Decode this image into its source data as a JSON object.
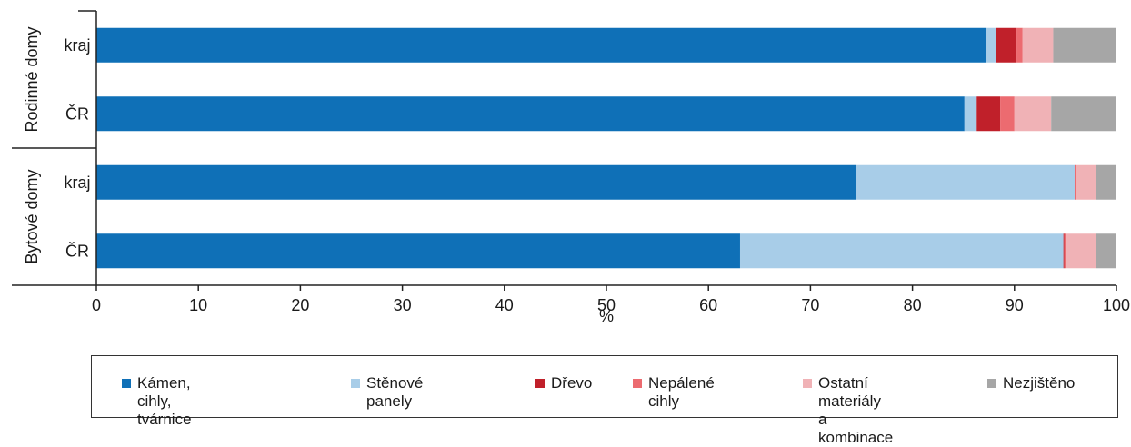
{
  "chart_data": {
    "type": "bar",
    "orientation": "horizontal",
    "stacked": true,
    "xlabel": "%",
    "xlim": [
      0,
      100
    ],
    "xticks": [
      0,
      10,
      20,
      30,
      40,
      50,
      60,
      70,
      80,
      90,
      100
    ],
    "groups": [
      {
        "label": "Rodinné domy",
        "categories": [
          "kraj",
          "ČR"
        ]
      },
      {
        "label": "Bytové domy",
        "categories": [
          "kraj",
          "ČR"
        ]
      }
    ],
    "series": [
      {
        "name": "Kámen, cihly, tvárnice",
        "color": "#0f70b7",
        "values": [
          87.2,
          85.1,
          74.5,
          63.1
        ]
      },
      {
        "name": "Stěnové panely",
        "color": "#a8cde8",
        "values": [
          1.0,
          1.2,
          21.4,
          31.7
        ]
      },
      {
        "name": "Dřevo",
        "color": "#c0202a",
        "values": [
          2.0,
          2.3,
          0.0,
          0.1
        ]
      },
      {
        "name": "Nepálené cihly",
        "color": "#ec6b70",
        "values": [
          0.6,
          1.4,
          0.1,
          0.2
        ]
      },
      {
        "name": "Ostatní materiály\na kombinace",
        "color": "#f0b2b6",
        "values": [
          3.0,
          3.6,
          2.0,
          2.9
        ]
      },
      {
        "name": "Nezjištěno",
        "color": "#a6a6a6",
        "values": [
          6.2,
          6.4,
          2.0,
          2.0
        ]
      }
    ],
    "legend_position": "bottom",
    "grid": false
  }
}
